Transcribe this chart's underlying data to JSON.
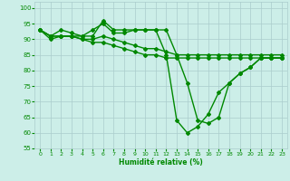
{
  "xlabel": "Humidité relative (%)",
  "background_color": "#cceee8",
  "grid_color": "#aacccc",
  "line_color": "#008800",
  "marker": "D",
  "markersize": 2,
  "linewidth": 1.0,
  "xlim": [
    -0.5,
    23.5
  ],
  "ylim": [
    55,
    102
  ],
  "yticks": [
    55,
    60,
    65,
    70,
    75,
    80,
    85,
    90,
    95,
    100
  ],
  "xticks": [
    0,
    1,
    2,
    3,
    4,
    5,
    6,
    7,
    8,
    9,
    10,
    11,
    12,
    13,
    14,
    15,
    16,
    17,
    18,
    19,
    20,
    21,
    22,
    23
  ],
  "lines": [
    [
      93,
      91,
      93,
      92,
      91,
      91,
      96,
      93,
      93,
      93,
      93,
      93,
      93,
      85,
      76,
      64,
      63,
      65,
      76,
      79,
      81,
      84,
      84,
      84
    ],
    [
      93,
      90,
      91,
      91,
      91,
      93,
      95,
      92,
      92,
      93,
      93,
      93,
      85,
      64,
      60,
      62,
      66,
      73,
      76,
      79,
      81,
      84,
      84,
      84
    ],
    [
      93,
      91,
      91,
      91,
      90,
      90,
      91,
      90,
      89,
      88,
      87,
      87,
      86,
      85,
      85,
      85,
      85,
      85,
      85,
      85,
      85,
      85,
      85,
      85
    ],
    [
      93,
      91,
      91,
      91,
      90,
      89,
      89,
      88,
      87,
      86,
      85,
      85,
      84,
      84,
      84,
      84,
      84,
      84,
      84,
      84,
      84,
      84,
      84,
      84
    ]
  ]
}
